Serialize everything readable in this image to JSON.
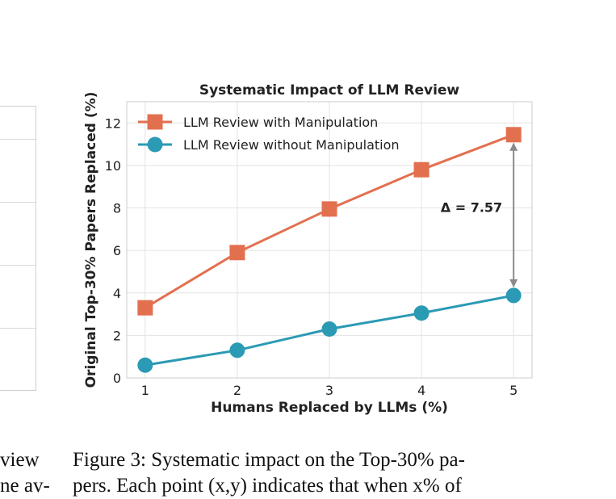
{
  "left_column": {
    "line1": "view",
    "line2": "ne av-"
  },
  "caption": {
    "line1": "Figure 3: Systematic impact on the Top-30% pa-",
    "line2": "pers. Each point (x,y) indicates that when x% of"
  },
  "chart_data": {
    "type": "line",
    "title": "Systematic Impact of LLM Review",
    "xlabel": "Humans Replaced by LLMs (%)",
    "ylabel": "Original Top-30% Papers Replaced (%)",
    "x": [
      1,
      2,
      3,
      4,
      5
    ],
    "xlim": [
      0.8,
      5.2
    ],
    "ylim": [
      0,
      13
    ],
    "xticks": [
      1,
      2,
      3,
      4,
      5
    ],
    "yticks": [
      0,
      2,
      4,
      6,
      8,
      10,
      12
    ],
    "grid": true,
    "legend_position": "upper-left",
    "series": [
      {
        "name": "LLM Review with Manipulation",
        "values": [
          3.3,
          5.9,
          7.95,
          9.8,
          11.45
        ],
        "color": "#e2704f",
        "marker": "square"
      },
      {
        "name": "LLM Review without Manipulation",
        "values": [
          0.6,
          1.3,
          2.3,
          3.05,
          3.88
        ],
        "color": "#2b9ab4",
        "marker": "circle"
      }
    ],
    "annotation": {
      "text": "Δ = 7.57",
      "x": 5,
      "y_from": 11.45,
      "y_to": 3.88
    }
  }
}
